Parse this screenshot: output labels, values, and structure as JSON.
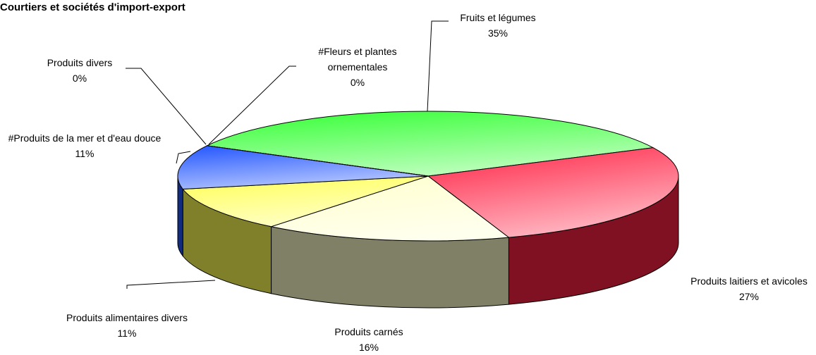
{
  "chart_data": {
    "type": "pie",
    "title": "Courtiers et sociétés d'import-export",
    "categories": [
      "Fruits et légumes",
      "Produits laitiers et avicoles",
      "Produits carnés",
      "Produits alimentaires divers",
      "#Produits de la mer et d'eau douce",
      "Produits divers",
      "#Fleurs et plantes ornementales"
    ],
    "values": [
      35,
      27,
      16,
      11,
      11,
      0,
      0
    ],
    "value_labels": [
      "35%",
      "27%",
      "16%",
      "11%",
      "11%",
      "0%",
      "0%"
    ],
    "colors": [
      "#33ff33",
      "#ff2244",
      "#ffffcc",
      "#ffff55",
      "#2255ff",
      "#111111",
      "#114411"
    ]
  }
}
